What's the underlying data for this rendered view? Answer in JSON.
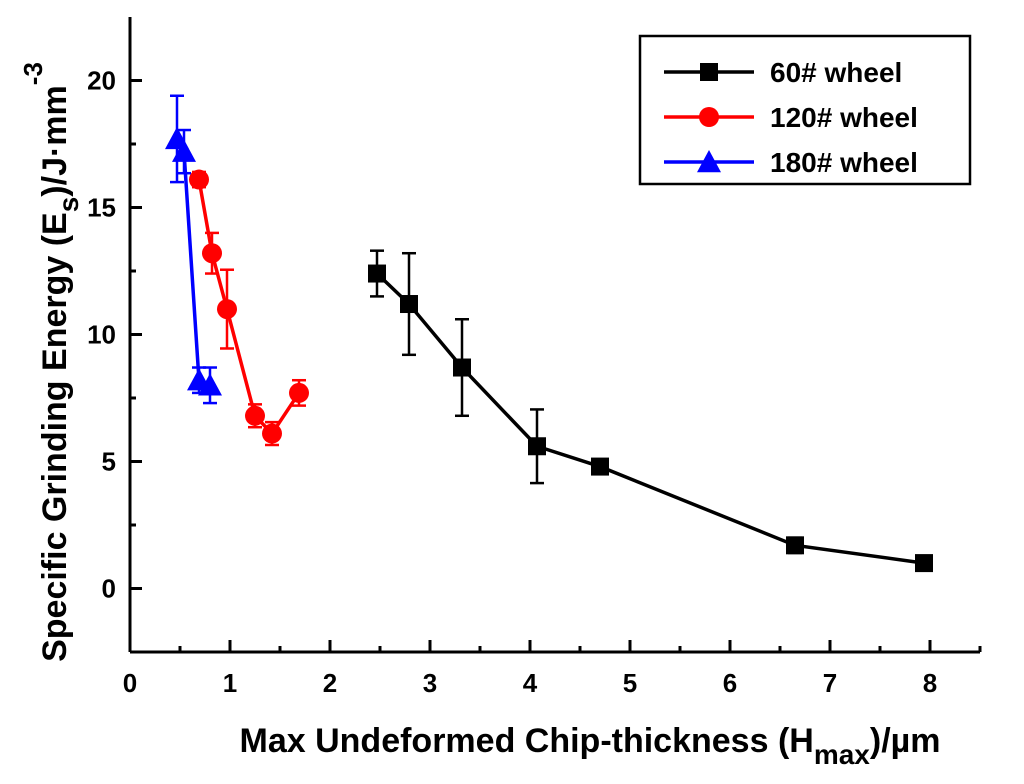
{
  "chart_data": {
    "type": "line",
    "xlabel": {
      "main": "Max Undeformed Chip-thickness (H",
      "sub": "max",
      "tail": ")/µm"
    },
    "ylabel": {
      "main": "Specific Grinding Energy (E",
      "sub": "s",
      "mid": ")/J·mm",
      "sup": "-3"
    },
    "xlim": [
      0,
      8.5
    ],
    "ylim": [
      -2.5,
      22.5
    ],
    "xticks": [
      "0",
      "1",
      "2",
      "3",
      "4",
      "5",
      "6",
      "7",
      "8"
    ],
    "yticks": [
      "0",
      "5",
      "10",
      "15",
      "20"
    ],
    "legend_position": "top-right",
    "series": [
      {
        "name": "60# wheel",
        "color": "#000000",
        "marker": "square",
        "x": [
          2.47,
          2.79,
          3.32,
          4.07,
          4.7,
          6.65,
          7.94
        ],
        "y": [
          12.4,
          11.2,
          8.7,
          5.6,
          4.8,
          1.7,
          1.0
        ],
        "err": [
          0.9,
          2.0,
          1.9,
          1.45,
          0.2,
          0.3,
          0.2
        ]
      },
      {
        "name": "120# wheel",
        "color": "#ff0000",
        "marker": "circle",
        "x": [
          0.69,
          0.82,
          0.97,
          1.25,
          1.42,
          1.69
        ],
        "y": [
          16.1,
          13.2,
          11.0,
          6.8,
          6.1,
          7.7
        ],
        "err": [
          0.3,
          0.8,
          1.55,
          0.45,
          0.45,
          0.5
        ]
      },
      {
        "name": "180# wheel",
        "color": "#0000ff",
        "marker": "triangle",
        "x": [
          0.47,
          0.54,
          0.69,
          0.8
        ],
        "y": [
          17.7,
          17.2,
          8.2,
          8.0
        ],
        "err": [
          1.7,
          0.85,
          0.5,
          0.7
        ]
      }
    ]
  }
}
